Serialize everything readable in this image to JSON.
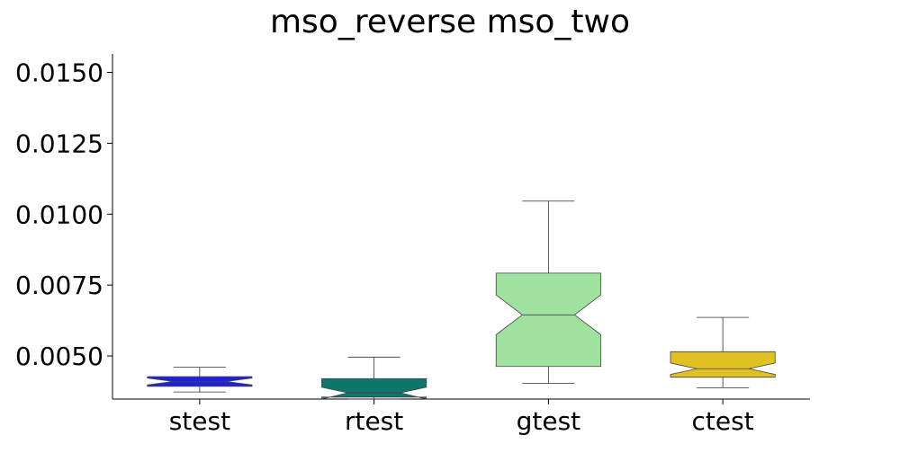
{
  "chart_data": {
    "type": "box",
    "title": "mso_reverse mso_two",
    "xlabel": "",
    "ylabel": "",
    "ylim": [
      0.00348,
      0.01565
    ],
    "yticks": [
      "0.0050",
      "0.0075",
      "0.0100",
      "0.0125",
      "0.0150"
    ],
    "ytick_values": [
      0.005,
      0.0075,
      0.01,
      0.0125,
      0.015
    ],
    "grid": false,
    "notched": true,
    "categories": [
      "stest",
      "rtest",
      "gtest",
      "ctest"
    ],
    "boxes": [
      {
        "name": "stest",
        "color": "#1f1fe0",
        "whisker_low": 0.00373,
        "q1": 0.00393,
        "median": 0.0041,
        "q3": 0.00427,
        "whisker_high": 0.0046,
        "notch_low": 0.00398,
        "notch_high": 0.00422
      },
      {
        "name": "rtest",
        "color": "#0f766e",
        "whisker_low": 0.00348,
        "q1": 0.00355,
        "median": 0.0037,
        "q3": 0.0042,
        "whisker_high": 0.00496,
        "notch_low": 0.00348,
        "notch_high": 0.0039
      },
      {
        "name": "gtest",
        "color": "#9fe2a0",
        "whisker_low": 0.00403,
        "q1": 0.00463,
        "median": 0.00645,
        "q3": 0.00792,
        "whisker_high": 0.01046,
        "notch_low": 0.00575,
        "notch_high": 0.00715
      },
      {
        "name": "ctest",
        "color": "#dfc124",
        "whisker_low": 0.00388,
        "q1": 0.00425,
        "median": 0.00455,
        "q3": 0.00515,
        "whisker_high": 0.00636,
        "notch_low": 0.00435,
        "notch_high": 0.00475
      }
    ]
  }
}
